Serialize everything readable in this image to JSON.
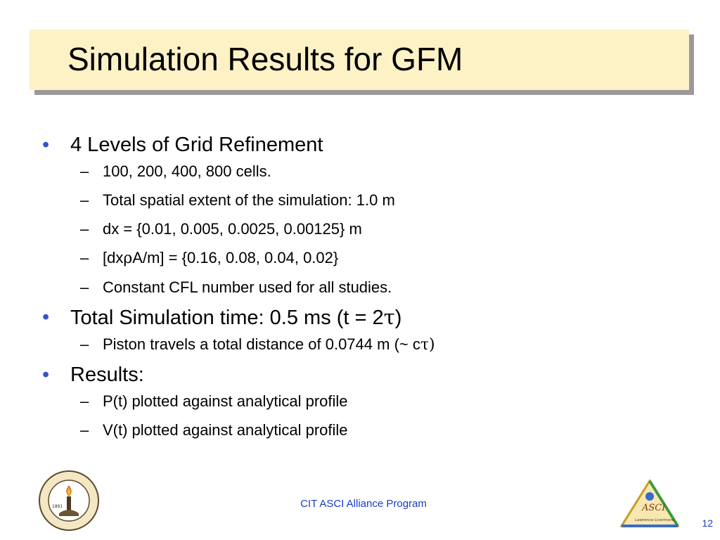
{
  "slide": {
    "title": "Simulation Results for GFM",
    "page_number": "12",
    "footer": "CIT ASCI Alliance Program"
  },
  "bullets": [
    {
      "text": "4 Levels of Grid Refinement",
      "sub": [
        {
          "text": "100, 200, 400, 800 cells."
        },
        {
          "text": "Total spatial extent of the simulation: 1.0 m"
        },
        {
          "text": "dx = {0.01, 0.005, 0.0025, 0.00125} m"
        },
        {
          "pre": "[dx",
          "greek": "ρ",
          "post": "A/m] = {0.16, 0.08, 0.04, 0.02}"
        },
        {
          "text": "Constant CFL number used for all studies."
        }
      ]
    },
    {
      "pre": "Total Simulation time: 0.5 ms (t = 2",
      "greek": "τ",
      "post": ")",
      "sub": [
        {
          "pre": "Piston travels a total distance of 0.0744 m (~ c",
          "greek": "τ",
          "post": ")"
        }
      ]
    },
    {
      "text": "Results:",
      "sub": [
        {
          "text": "P(t) plotted against analytical profile"
        },
        {
          "text": "V(t) plotted against analytical profile"
        }
      ]
    }
  ],
  "logos": {
    "seal_name": "California Institute of Technology seal",
    "seal_year": "1891",
    "seal_ring_text": "CALIFORNIA INSTITUTE OF TECHNOLOGY",
    "asci_name": "ASCI logo",
    "asci_text": "ASCI",
    "asci_subtext": "Lawrence Livermore"
  },
  "colors": {
    "title_background": "#fdf2c6",
    "title_shadow": "#9a9a9a",
    "bullet": "#3355cc",
    "footer": "#1a3cc8"
  }
}
